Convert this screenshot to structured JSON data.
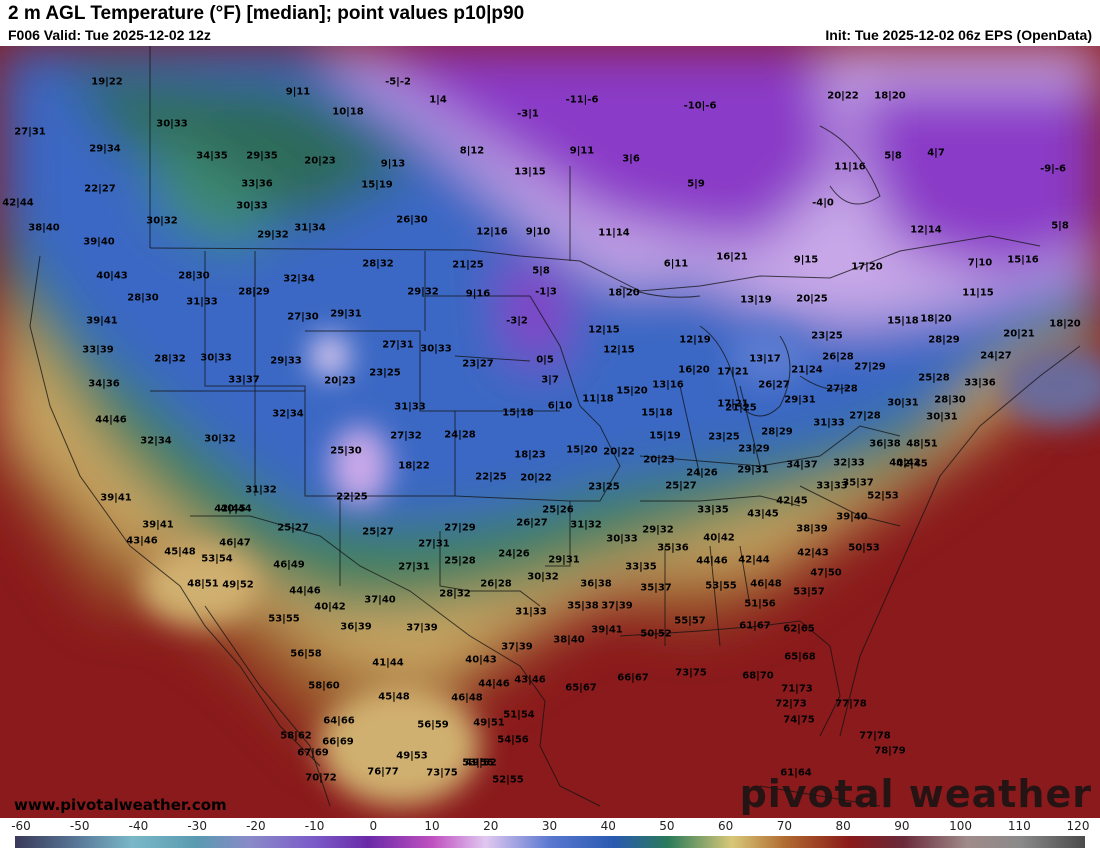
{
  "header": {
    "title": "2 m AGL Temperature (°F) [median]; point values p10|p90",
    "valid": "F006 Valid: Tue 2025-12-02 12z",
    "init": "Init: Tue 2025-12-02 06z EPS (OpenData)"
  },
  "map": {
    "watermark_url": "www.pivotalweather.com",
    "brand": "pivotal weather",
    "point_values": [
      {
        "label": "19|22"
      },
      {
        "label": "9|11"
      },
      {
        "label": "-5|-2"
      },
      {
        "label": "1|4"
      },
      {
        "label": "10|18"
      },
      {
        "label": "-11|-6"
      },
      {
        "label": "-10|-6"
      },
      {
        "label": "20|22"
      },
      {
        "label": "18|20"
      },
      {
        "label": "27|31"
      },
      {
        "label": "30|33"
      },
      {
        "label": "-3|1"
      },
      {
        "label": "29|34"
      },
      {
        "label": "34|35"
      },
      {
        "label": "29|35"
      },
      {
        "label": "20|23"
      },
      {
        "label": "9|13"
      },
      {
        "label": "8|12"
      },
      {
        "label": "9|11"
      },
      {
        "label": "3|6"
      },
      {
        "label": "11|16"
      },
      {
        "label": "5|8"
      },
      {
        "label": "4|7"
      },
      {
        "label": "-9|-6"
      },
      {
        "label": "22|27"
      },
      {
        "label": "33|36"
      },
      {
        "label": "15|19"
      },
      {
        "label": "13|15"
      },
      {
        "label": "5|9"
      },
      {
        "label": "42|44"
      },
      {
        "label": "30|33"
      },
      {
        "label": "-4|0"
      },
      {
        "label": "30|32"
      },
      {
        "label": "26|30"
      },
      {
        "label": "38|40"
      },
      {
        "label": "29|32"
      },
      {
        "label": "31|34"
      },
      {
        "label": "12|16"
      },
      {
        "label": "9|10"
      },
      {
        "label": "11|14"
      },
      {
        "label": "12|14"
      },
      {
        "label": "5|8"
      },
      {
        "label": "39|40"
      },
      {
        "label": "6|11"
      },
      {
        "label": "16|21"
      },
      {
        "label": "9|15"
      },
      {
        "label": "17|20"
      },
      {
        "label": "7|10"
      },
      {
        "label": "15|16"
      },
      {
        "label": "21|25"
      },
      {
        "label": "28|32"
      },
      {
        "label": "5|8"
      },
      {
        "label": "40|43"
      },
      {
        "label": "28|30"
      },
      {
        "label": "32|34"
      },
      {
        "label": "28|29"
      },
      {
        "label": "29|32"
      },
      {
        "label": "9|16"
      },
      {
        "label": "-1|3"
      },
      {
        "label": "18|20"
      },
      {
        "label": "13|19"
      },
      {
        "label": "20|25"
      },
      {
        "label": "11|15"
      },
      {
        "label": "28|30"
      },
      {
        "label": "31|33"
      },
      {
        "label": "27|30"
      },
      {
        "label": "29|31"
      },
      {
        "label": "-3|2"
      },
      {
        "label": "12|15"
      },
      {
        "label": "15|18"
      },
      {
        "label": "18|20"
      },
      {
        "label": "39|41"
      },
      {
        "label": "12|19"
      },
      {
        "label": "23|25"
      },
      {
        "label": "20|21"
      },
      {
        "label": "18|20"
      },
      {
        "label": "33|39"
      },
      {
        "label": "27|31"
      },
      {
        "label": "30|33"
      },
      {
        "label": "12|15"
      },
      {
        "label": "26|28"
      },
      {
        "label": "28|29"
      },
      {
        "label": "28|32"
      },
      {
        "label": "30|33"
      },
      {
        "label": "29|33"
      },
      {
        "label": "23|27"
      },
      {
        "label": "0|5"
      },
      {
        "label": "13|17"
      },
      {
        "label": "27|29"
      },
      {
        "label": "24|27"
      },
      {
        "label": "20|23"
      },
      {
        "label": "23|25"
      },
      {
        "label": "16|20"
      },
      {
        "label": "17|21"
      },
      {
        "label": "21|24"
      },
      {
        "label": "25|28"
      },
      {
        "label": "34|36"
      },
      {
        "label": "33|37"
      },
      {
        "label": "3|7"
      },
      {
        "label": "13|16"
      },
      {
        "label": "26|27"
      },
      {
        "label": "27|28"
      },
      {
        "label": "33|36"
      },
      {
        "label": "15|20"
      },
      {
        "label": "11|18"
      },
      {
        "label": "17|21"
      },
      {
        "label": "29|31"
      },
      {
        "label": "30|31"
      },
      {
        "label": "28|30"
      },
      {
        "label": "44|46"
      },
      {
        "label": "32|34"
      },
      {
        "label": "31|33"
      },
      {
        "label": "6|10"
      },
      {
        "label": "15|18"
      },
      {
        "label": "15|18"
      },
      {
        "label": "21|25"
      },
      {
        "label": "27|28"
      },
      {
        "label": "31|33"
      },
      {
        "label": "30|31"
      },
      {
        "label": "32|34"
      },
      {
        "label": "30|32"
      },
      {
        "label": "27|32"
      },
      {
        "label": "24|28"
      },
      {
        "label": "15|19"
      },
      {
        "label": "23|25"
      },
      {
        "label": "28|29"
      },
      {
        "label": "36|38"
      },
      {
        "label": "48|51"
      },
      {
        "label": "25|30"
      },
      {
        "label": "18|23"
      },
      {
        "label": "15|20"
      },
      {
        "label": "20|22"
      },
      {
        "label": "23|29"
      },
      {
        "label": "40|42"
      },
      {
        "label": "18|22"
      },
      {
        "label": "20|23"
      },
      {
        "label": "34|37"
      },
      {
        "label": "32|33"
      },
      {
        "label": "42|45"
      },
      {
        "label": "24|26"
      },
      {
        "label": "29|31"
      },
      {
        "label": "22|25"
      },
      {
        "label": "20|22"
      },
      {
        "label": "35|37"
      },
      {
        "label": "42|45"
      },
      {
        "label": "31|32"
      },
      {
        "label": "23|25"
      },
      {
        "label": "25|27"
      },
      {
        "label": "33|33"
      },
      {
        "label": "39|41"
      },
      {
        "label": "22|25"
      },
      {
        "label": "52|53"
      },
      {
        "label": "42|45"
      },
      {
        "label": "40|44"
      },
      {
        "label": "25|26"
      },
      {
        "label": "33|35"
      },
      {
        "label": "43|45"
      },
      {
        "label": "39|41"
      },
      {
        "label": "25|27"
      },
      {
        "label": "26|27"
      },
      {
        "label": "31|32"
      },
      {
        "label": "39|40"
      },
      {
        "label": "27|29"
      },
      {
        "label": "29|32"
      },
      {
        "label": "38|39"
      },
      {
        "label": "43|46"
      },
      {
        "label": "46|47"
      },
      {
        "label": "25|27"
      },
      {
        "label": "30|33"
      },
      {
        "label": "40|42"
      },
      {
        "label": "50|53"
      },
      {
        "label": "45|48"
      },
      {
        "label": "53|54"
      },
      {
        "label": "27|31"
      },
      {
        "label": "24|26"
      },
      {
        "label": "35|36"
      },
      {
        "label": "42|43"
      },
      {
        "label": "46|49"
      },
      {
        "label": "27|31"
      },
      {
        "label": "25|28"
      },
      {
        "label": "29|31"
      },
      {
        "label": "33|35"
      },
      {
        "label": "44|46"
      },
      {
        "label": "42|44"
      },
      {
        "label": "47|50"
      },
      {
        "label": "48|51"
      },
      {
        "label": "49|52"
      },
      {
        "label": "30|32"
      },
      {
        "label": "44|46"
      },
      {
        "label": "26|28"
      },
      {
        "label": "36|38"
      },
      {
        "label": "35|37"
      },
      {
        "label": "53|55"
      },
      {
        "label": "46|48"
      },
      {
        "label": "53|57"
      },
      {
        "label": "28|32"
      },
      {
        "label": "37|40"
      },
      {
        "label": "40|42"
      },
      {
        "label": "35|38"
      },
      {
        "label": "37|39"
      },
      {
        "label": "51|56"
      },
      {
        "label": "31|33"
      },
      {
        "label": "53|55"
      },
      {
        "label": "36|39"
      },
      {
        "label": "37|39"
      },
      {
        "label": "55|57"
      },
      {
        "label": "38|40"
      },
      {
        "label": "39|41"
      },
      {
        "label": "50|52"
      },
      {
        "label": "61|67"
      },
      {
        "label": "62|65"
      },
      {
        "label": "56|58"
      },
      {
        "label": "41|44"
      },
      {
        "label": "40|43"
      },
      {
        "label": "37|39"
      },
      {
        "label": "65|68"
      },
      {
        "label": "58|60"
      },
      {
        "label": "44|46"
      },
      {
        "label": "43|46"
      },
      {
        "label": "73|75"
      },
      {
        "label": "65|67"
      },
      {
        "label": "66|67"
      },
      {
        "label": "68|70"
      },
      {
        "label": "71|73"
      },
      {
        "label": "45|48"
      },
      {
        "label": "46|48"
      },
      {
        "label": "77|78"
      },
      {
        "label": "72|73"
      },
      {
        "label": "64|66"
      },
      {
        "label": "49|51"
      },
      {
        "label": "51|54"
      },
      {
        "label": "74|75"
      },
      {
        "label": "56|59"
      },
      {
        "label": "58|62"
      },
      {
        "label": "66|69"
      },
      {
        "label": "54|56"
      },
      {
        "label": "77|78"
      },
      {
        "label": "67|69"
      },
      {
        "label": "49|53"
      },
      {
        "label": "53|56"
      },
      {
        "label": "78|79"
      },
      {
        "label": "70|72"
      },
      {
        "label": "73|75"
      },
      {
        "label": "49|52"
      },
      {
        "label": "61|64"
      },
      {
        "label": "76|77"
      },
      {
        "label": "52|55"
      }
    ]
  },
  "colorbar": {
    "ticks": [
      "-60",
      "-50",
      "-40",
      "-30",
      "-20",
      "-10",
      "0",
      "10",
      "20",
      "30",
      "40",
      "50",
      "60",
      "70",
      "80",
      "90",
      "100",
      "110",
      "120"
    ]
  }
}
